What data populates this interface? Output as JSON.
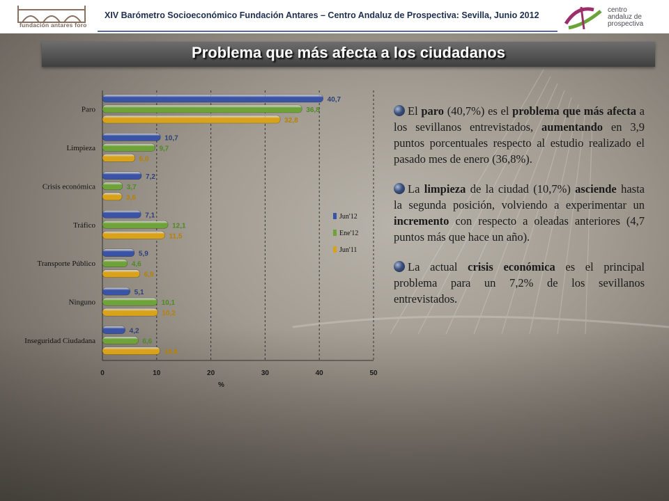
{
  "header": {
    "title": "XIV Barómetro Socioeconómico Fundación Antares – Centro Andaluz de Prospectiva: Sevilla, Junio 2012",
    "left_logo_text": "fundación antares foro",
    "right_logo_lines": [
      "centro",
      "andaluz de",
      "prospectiva"
    ]
  },
  "slide_title": "Problema que más afecta a los ciudadanos",
  "chart_data": {
    "type": "bar",
    "orientation": "horizontal",
    "categories": [
      "Paro",
      "Limpieza",
      "Crisis económica",
      "Tráfico",
      "Transporte Público",
      "Ninguno",
      "Inseguridad Ciudadana"
    ],
    "series": [
      {
        "name": "Jun'12",
        "color": "#3b53a4",
        "values": [
          40.7,
          10.7,
          7.2,
          7.1,
          5.9,
          5.1,
          4.2
        ]
      },
      {
        "name": "Ene'12",
        "color": "#6fa33a",
        "values": [
          36.8,
          9.7,
          3.7,
          12.1,
          4.6,
          10.1,
          6.6
        ]
      },
      {
        "name": "Jun'11",
        "color": "#d9a21b",
        "values": [
          32.8,
          6.0,
          3.6,
          11.5,
          6.9,
          10.2,
          10.6
        ]
      }
    ],
    "value_labels": [
      [
        "40,7",
        "10,7",
        "7,2",
        "7,1",
        "5,9",
        "5,1",
        "4,2"
      ],
      [
        "36,8",
        "9,7",
        "3,7",
        "12,1",
        "4,6",
        "10,1",
        "6,6"
      ],
      [
        "32,8",
        "6,0",
        "3,6",
        "11,5",
        "6,9",
        "10,2",
        "10,6"
      ]
    ],
    "xlabel": "%",
    "xlim": [
      0,
      50
    ],
    "xticks": [
      0,
      10,
      20,
      30,
      40,
      50
    ],
    "grid": "vertical dashed",
    "legend_position": "right"
  },
  "bullets": [
    {
      "parts": [
        [
          "El ",
          false
        ],
        [
          "paro",
          true
        ],
        [
          " (40,7%) es el ",
          false
        ],
        [
          "problema que más afecta",
          true
        ],
        [
          " a los sevillanos entrevistados, ",
          false
        ],
        [
          "aumentando",
          true
        ],
        [
          " en 3,9 puntos porcentuales respecto al estudio realizado el pasado mes de enero (36,8%).",
          false
        ]
      ]
    },
    {
      "parts": [
        [
          "La ",
          false
        ],
        [
          "limpieza",
          true
        ],
        [
          " de la ciudad (10,7%) ",
          false
        ],
        [
          "asciende",
          true
        ],
        [
          " hasta la segunda posición, volviendo a experimentar un ",
          false
        ],
        [
          "incremento",
          true
        ],
        [
          " con respecto a oleadas anteriores (4,7 puntos más que hace un año).",
          false
        ]
      ]
    },
    {
      "parts": [
        [
          "La actual ",
          false
        ],
        [
          "crisis económica",
          true
        ],
        [
          " es el principal problema para un 7,2% de los sevillanos entrevistados.",
          false
        ]
      ]
    }
  ]
}
